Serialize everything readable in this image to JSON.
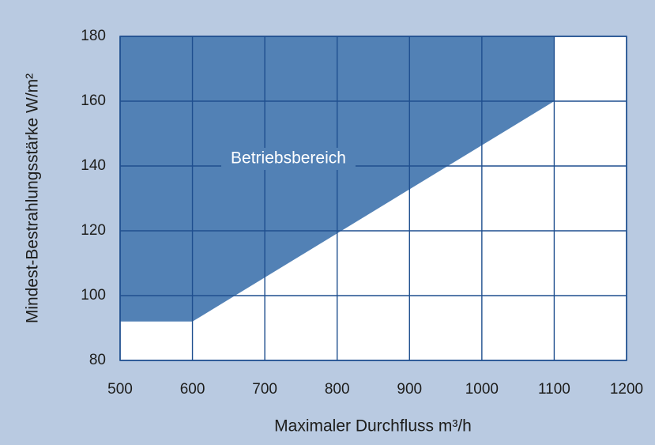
{
  "chart_data": {
    "type": "area",
    "fill": "above",
    "color": "#5281b5",
    "x": [
      500,
      600,
      1100
    ],
    "values": [
      92,
      92,
      160
    ],
    "xlabel": "Maximaler Durchfluss m³/h",
    "ylabel": "Mindest-Bestrahlungsstärke W/m²",
    "annotation": "Betriebsbereich",
    "xlim": [
      500,
      1200
    ],
    "xticks": [
      500,
      600,
      700,
      800,
      900,
      1000,
      1100,
      1200
    ],
    "ylim": [
      80,
      180
    ],
    "yticks": [
      80,
      100,
      120,
      140,
      160,
      180
    ],
    "grid": true
  }
}
